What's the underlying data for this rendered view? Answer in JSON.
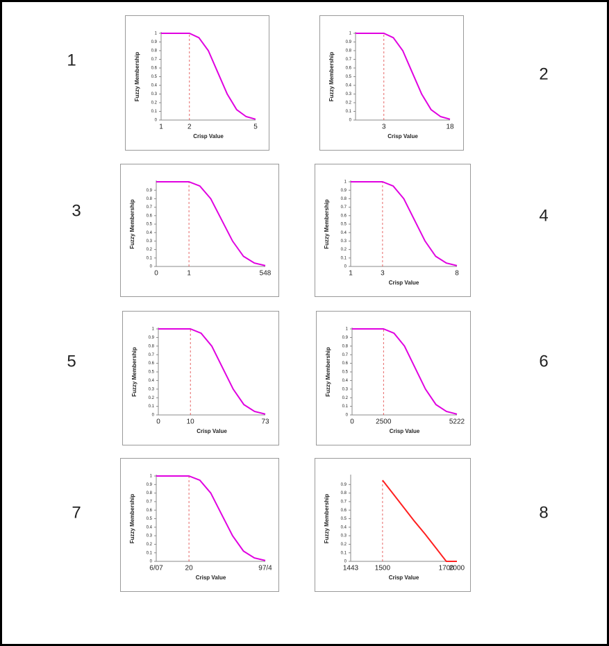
{
  "panel_numbers": [
    "1",
    "2",
    "3",
    "4",
    "5",
    "6",
    "7",
    "8"
  ],
  "chart_data": [
    {
      "type": "line",
      "y_label": "Fuzzy Membership",
      "x_label": "Crisp Value",
      "categories": [
        "1",
        null,
        null,
        "2",
        null,
        null,
        null,
        null,
        null,
        null,
        "5"
      ],
      "values": [
        1,
        1,
        1,
        1,
        0.95,
        0.8,
        0.55,
        0.3,
        0.12,
        0.04,
        0.01
      ],
      "color": "#e000e0",
      "ylim": [
        0,
        1
      ],
      "yticks": [
        0,
        0.1,
        0.2,
        0.3,
        0.4,
        0.5,
        0.6,
        0.7,
        0.8,
        0.9,
        1
      ]
    },
    {
      "type": "line",
      "y_label": "Fuzzy Membership",
      "x_label": "Crisp Value",
      "categories": [
        null,
        null,
        null,
        "3",
        null,
        null,
        null,
        null,
        null,
        null,
        "18"
      ],
      "values": [
        1,
        1,
        1,
        1,
        0.95,
        0.8,
        0.55,
        0.3,
        0.12,
        0.04,
        0.01
      ],
      "color": "#e000e0",
      "ylim": [
        0,
        1
      ],
      "yticks": [
        0,
        0.1,
        0.2,
        0.3,
        0.4,
        0.5,
        0.6,
        0.7,
        0.8,
        0.9,
        1
      ]
    },
    {
      "type": "line",
      "y_label": "Fuzzy Membership",
      "categories": [
        "0",
        null,
        null,
        "1",
        null,
        null,
        null,
        null,
        null,
        null,
        "548"
      ],
      "values": [
        1,
        1,
        1,
        1,
        0.95,
        0.8,
        0.55,
        0.3,
        0.12,
        0.04,
        0.01
      ],
      "color": "#e000e0",
      "ylim": [
        0,
        1
      ],
      "yticks": [
        0,
        0.1,
        0.2,
        0.3,
        0.4,
        0.5,
        0.6,
        0.7,
        0.8,
        0.9
      ]
    },
    {
      "type": "line",
      "y_label": "Fuzzy Membership",
      "x_label": "Crisp Value",
      "categories": [
        "1",
        null,
        null,
        "3",
        null,
        null,
        null,
        null,
        null,
        null,
        "8"
      ],
      "values": [
        1,
        1,
        1,
        1,
        0.95,
        0.8,
        0.55,
        0.3,
        0.12,
        0.04,
        0.01
      ],
      "color": "#e000e0",
      "ylim": [
        0,
        1
      ],
      "yticks": [
        0,
        0.1,
        0.2,
        0.3,
        0.4,
        0.5,
        0.6,
        0.7,
        0.8,
        0.9,
        1
      ]
    },
    {
      "type": "line",
      "y_label": "Fuzzy Membership",
      "x_label": "Crisp Value",
      "categories": [
        "0",
        null,
        null,
        "10",
        null,
        null,
        null,
        null,
        null,
        null,
        "73"
      ],
      "values": [
        1,
        1,
        1,
        1,
        0.95,
        0.8,
        0.55,
        0.3,
        0.12,
        0.04,
        0.01
      ],
      "color": "#e000e0",
      "ylim": [
        0,
        1
      ],
      "yticks": [
        0,
        0.1,
        0.2,
        0.3,
        0.4,
        0.5,
        0.6,
        0.7,
        0.8,
        0.9,
        1
      ]
    },
    {
      "type": "line",
      "y_label": "Fuzzy Membership",
      "x_label": "Crisp Value",
      "categories": [
        "0",
        null,
        null,
        "2500",
        null,
        null,
        null,
        null,
        null,
        null,
        "5222"
      ],
      "values": [
        1,
        1,
        1,
        1,
        0.95,
        0.8,
        0.55,
        0.3,
        0.12,
        0.04,
        0.01
      ],
      "color": "#e000e0",
      "ylim": [
        0,
        1
      ],
      "yticks": [
        0,
        0.1,
        0.2,
        0.3,
        0.4,
        0.5,
        0.6,
        0.7,
        0.8,
        0.9,
        1
      ]
    },
    {
      "type": "line",
      "y_label": "Fuzzy Membership",
      "x_label": "Crisp Value",
      "categories": [
        "6/07",
        null,
        null,
        "20",
        null,
        null,
        null,
        null,
        null,
        null,
        "97/4"
      ],
      "values": [
        1,
        1,
        1,
        1,
        0.95,
        0.8,
        0.55,
        0.3,
        0.12,
        0.04,
        0.01
      ],
      "color": "#e000e0",
      "ylim": [
        0,
        1
      ],
      "yticks": [
        0,
        0.1,
        0.2,
        0.3,
        0.4,
        0.5,
        0.6,
        0.7,
        0.8,
        0.9,
        1
      ]
    },
    {
      "type": "line",
      "y_label": "Fuzzy Membership",
      "x_label": "Crisp Value",
      "categories": [
        "1443",
        null,
        null,
        "1500",
        null,
        null,
        null,
        null,
        null,
        "1700",
        "2000"
      ],
      "values": [
        null,
        null,
        null,
        0.95,
        0.79,
        0.63,
        0.47,
        0.32,
        0.16,
        0,
        0
      ],
      "color": "#ff2020",
      "ylim": [
        0,
        1
      ],
      "yticks": [
        0,
        0.1,
        0.2,
        0.3,
        0.4,
        0.5,
        0.6,
        0.7,
        0.8,
        0.9
      ]
    }
  ]
}
